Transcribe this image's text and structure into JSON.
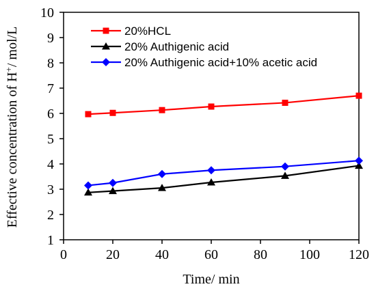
{
  "chart_data": {
    "type": "line",
    "xlabel": "Time/ min",
    "ylabel_main": "Effective concentration of H",
    "ylabel_sup": "+",
    "ylabel_tail": "/ mol/L",
    "xlim": [
      0,
      120
    ],
    "ylim": [
      1,
      10
    ],
    "xticks": [
      "0",
      "20",
      "40",
      "60",
      "80",
      "100",
      "120"
    ],
    "yticks": [
      "1",
      "2",
      "3",
      "4",
      "5",
      "6",
      "7",
      "8",
      "9",
      "10"
    ],
    "grid": false,
    "legend_position": "top-left",
    "x": [
      10,
      20,
      40,
      60,
      90,
      120
    ],
    "series": [
      {
        "name": "20%HCL",
        "marker": "square",
        "color": "#ff0000",
        "values": [
          5.97,
          6.02,
          6.13,
          6.27,
          6.42,
          6.7
        ]
      },
      {
        "name": "20% Authigenic acid",
        "marker": "triangle",
        "color": "#000000",
        "values": [
          2.87,
          2.93,
          3.05,
          3.27,
          3.53,
          3.93
        ]
      },
      {
        "name": "20% Authigenic acid+10% acetic acid",
        "marker": "diamond",
        "color": "#0000ff",
        "values": [
          3.15,
          3.25,
          3.6,
          3.75,
          3.9,
          4.13
        ]
      }
    ]
  }
}
